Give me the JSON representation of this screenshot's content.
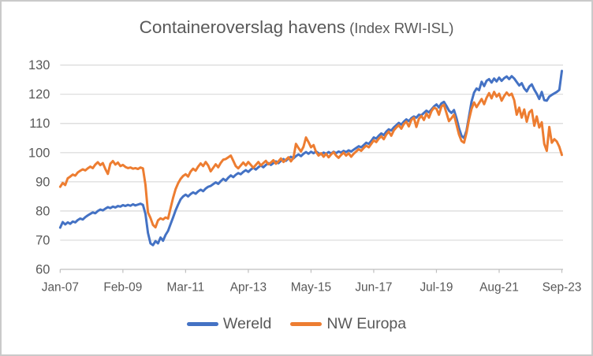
{
  "frame": {
    "border_color": "#cacaca",
    "background": "#ffffff"
  },
  "chart": {
    "text_color": "#595959",
    "grid_color": "#d9d9d9",
    "axis_color": "#bfbfbf"
  },
  "chart_data": {
    "type": "line",
    "title": "Containeroverslag havens (Index RWI-ISL)",
    "title_main": "Containeroverslag havens",
    "title_sub": " (Index RWI-ISL)",
    "xlabel": "",
    "ylabel": "",
    "ylim": [
      60,
      130
    ],
    "y_ticks": [
      60,
      70,
      80,
      90,
      100,
      110,
      120,
      130
    ],
    "x_tick_labels": [
      "Jan-07",
      "Feb-09",
      "Mar-11",
      "Apr-13",
      "May-15",
      "Jun-17",
      "Jul-19",
      "Aug-21",
      "Sep-23"
    ],
    "x_tick_month_index": [
      0,
      25,
      50,
      75,
      100,
      125,
      150,
      175,
      200
    ],
    "x_start_label": "Jan-07",
    "x_end_label": "Sep-23",
    "frequency": "monthly",
    "grid": true,
    "legend_position": "bottom",
    "series": [
      {
        "name": "Wereld",
        "color": "#4472C4",
        "values": [
          74.3,
          76.2,
          75.4,
          76.1,
          75.6,
          76.4,
          76.1,
          76.9,
          77.4,
          77.1,
          77.9,
          78.5,
          79.0,
          79.5,
          79.2,
          80.0,
          80.5,
          80.2,
          80.8,
          81.3,
          81.0,
          81.5,
          81.2,
          81.7,
          81.5,
          82.0,
          81.7,
          82.1,
          81.8,
          82.3,
          81.9,
          82.2,
          82.5,
          82.1,
          79.0,
          72.5,
          68.9,
          68.3,
          69.7,
          68.9,
          70.9,
          69.8,
          71.8,
          73.2,
          75.5,
          77.8,
          80.2,
          82.2,
          84.0,
          85.0,
          85.6,
          85.0,
          85.8,
          86.4,
          85.9,
          86.7,
          87.3,
          86.8,
          87.7,
          88.3,
          88.6,
          89.2,
          89.8,
          89.3,
          90.2,
          91.0,
          90.4,
          91.4,
          92.2,
          91.6,
          92.4,
          93.0,
          92.6,
          93.4,
          94.0,
          93.4,
          94.2,
          94.8,
          94.2,
          95.0,
          95.6,
          95.0,
          95.8,
          96.4,
          95.8,
          96.4,
          97.0,
          96.4,
          97.2,
          97.8,
          97.2,
          98.0,
          98.6,
          98.0,
          98.8,
          99.4,
          98.8,
          99.6,
          100.2,
          99.6,
          100.3,
          99.8,
          100.4,
          99.8,
          99.4,
          100.0,
          99.6,
          100.2,
          99.7,
          100.3,
          99.8,
          100.4,
          100.0,
          100.6,
          100.2,
          100.8,
          100.4,
          101.0,
          101.6,
          102.2,
          101.8,
          102.6,
          103.4,
          103.0,
          104.0,
          105.2,
          104.8,
          105.8,
          106.6,
          106.0,
          107.2,
          108.0,
          107.6,
          108.6,
          109.4,
          110.2,
          109.6,
          110.6,
          111.4,
          110.8,
          111.8,
          112.4,
          112.0,
          113.0,
          112.8,
          113.6,
          114.4,
          113.8,
          114.8,
          115.8,
          116.5,
          115.5,
          116.9,
          117.4,
          116.0,
          114.4,
          113.6,
          114.6,
          111.8,
          108.4,
          105.8,
          105.0,
          107.6,
          112.5,
          117.5,
          120.6,
          122.0,
          121.4,
          124.3,
          122.8,
          124.6,
          125.2,
          124.0,
          125.4,
          124.4,
          125.7,
          124.6,
          125.5,
          126.1,
          125.2,
          126.2,
          125.4,
          124.2,
          123.0,
          123.8,
          122.0,
          121.0,
          122.6,
          123.4,
          121.6,
          120.2,
          118.4,
          120.8,
          118.0,
          117.8,
          119.2,
          119.8,
          120.3,
          120.8,
          121.5,
          128.0
        ]
      },
      {
        "name": "NW Europa",
        "color": "#ED7D31",
        "values": [
          88.3,
          89.6,
          88.9,
          91.2,
          91.8,
          92.5,
          92.1,
          93.2,
          93.8,
          94.3,
          93.9,
          94.6,
          95.2,
          94.7,
          95.9,
          96.7,
          95.7,
          96.4,
          94.4,
          92.7,
          96.2,
          97.1,
          95.9,
          96.6,
          95.4,
          95.8,
          95.1,
          94.7,
          94.9,
          94.5,
          94.7,
          94.4,
          94.9,
          94.6,
          89.0,
          79.5,
          77.6,
          75.2,
          74.4,
          76.8,
          77.5,
          77.1,
          77.8,
          77.4,
          81.0,
          84.5,
          87.5,
          89.5,
          91.0,
          92.0,
          92.6,
          91.8,
          93.5,
          94.5,
          93.8,
          95.2,
          96.3,
          95.4,
          96.8,
          95.6,
          93.6,
          94.8,
          96.0,
          95.0,
          96.5,
          97.6,
          97.8,
          98.4,
          99.0,
          97.2,
          95.4,
          94.6,
          95.6,
          96.6,
          95.6,
          96.8,
          95.8,
          94.8,
          95.8,
          96.8,
          95.6,
          96.4,
          97.2,
          96.0,
          96.6,
          97.4,
          96.2,
          97.0,
          98.0,
          96.8,
          97.6,
          98.4,
          97.0,
          98.2,
          103.0,
          101.6,
          100.4,
          102.0,
          105.2,
          103.6,
          101.8,
          102.6,
          100.2,
          99.0,
          99.8,
          98.6,
          99.6,
          98.4,
          99.4,
          100.2,
          99.0,
          98.2,
          99.2,
          100.0,
          99.0,
          99.8,
          98.6,
          99.6,
          100.4,
          101.2,
          100.6,
          101.6,
          102.4,
          101.8,
          103.0,
          104.2,
          103.6,
          104.8,
          105.6,
          104.6,
          106.2,
          107.2,
          105.8,
          107.6,
          108.6,
          109.4,
          108.2,
          109.8,
          110.6,
          109.0,
          111.2,
          112.0,
          108.8,
          111.6,
          112.6,
          111.2,
          113.4,
          112.0,
          114.2,
          115.4,
          115.0,
          113.0,
          115.8,
          116.4,
          113.6,
          110.8,
          111.8,
          113.0,
          109.6,
          106.2,
          104.0,
          103.4,
          106.8,
          111.4,
          115.0,
          117.2,
          115.6,
          117.0,
          118.4,
          116.6,
          118.8,
          120.4,
          118.6,
          120.8,
          119.2,
          120.2,
          117.8,
          119.4,
          120.6,
          119.6,
          120.2,
          118.0,
          113.0,
          115.4,
          112.0,
          114.8,
          110.6,
          113.8,
          114.6,
          109.2,
          112.4,
          108.6,
          110.4,
          103.0,
          100.6,
          108.8,
          103.4,
          104.6,
          103.8,
          102.0,
          99.2
        ]
      }
    ]
  }
}
